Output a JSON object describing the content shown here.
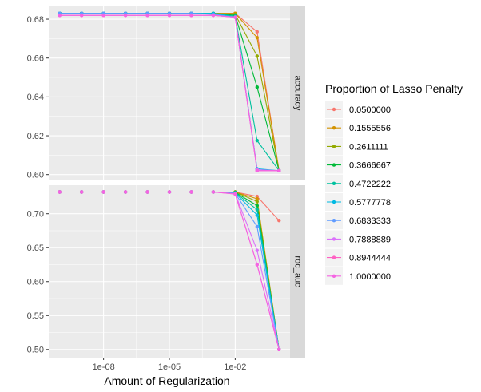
{
  "chart_data": {
    "type": "line",
    "xlabel": "Amount of Regularization",
    "x_scale": "log10",
    "x_ticks": [
      {
        "value": 1e-08,
        "label": "1e-08"
      },
      {
        "value": 1e-05,
        "label": "1e-05"
      },
      {
        "value": 0.01,
        "label": "1e-02"
      }
    ],
    "x": [
      1e-10,
      1e-09,
      1e-08,
      1e-07,
      1e-06,
      1e-05,
      0.0001,
      0.001,
      0.01,
      0.1,
      1
    ],
    "legend": {
      "title": "Proportion of Lasso Penalty",
      "position": "right"
    },
    "grid": true,
    "series_styles": [
      {
        "name": "0.0500000",
        "color": "#F8766D"
      },
      {
        "name": "0.1555556",
        "color": "#D39200"
      },
      {
        "name": "0.2611111",
        "color": "#93AA00"
      },
      {
        "name": "0.3666667",
        "color": "#00BA38"
      },
      {
        "name": "0.4722222",
        "color": "#00C19F"
      },
      {
        "name": "0.5777778",
        "color": "#00B9E3"
      },
      {
        "name": "0.6833333",
        "color": "#619CFF"
      },
      {
        "name": "0.7888889",
        "color": "#DB72FB"
      },
      {
        "name": "0.8944444",
        "color": "#FF61C3"
      },
      {
        "name": "1.0000000",
        "color": "#F564E3"
      }
    ],
    "panels": [
      {
        "strip_label": "accuracy",
        "ylim": [
          0.597,
          0.687
        ],
        "y_ticks": [
          {
            "value": 0.6,
            "label": "0.60"
          },
          {
            "value": 0.62,
            "label": "0.62"
          },
          {
            "value": 0.64,
            "label": "0.64"
          },
          {
            "value": 0.66,
            "label": "0.66"
          },
          {
            "value": 0.68,
            "label": "0.68"
          }
        ],
        "series": [
          {
            "name": "0.0500000",
            "values": [
              0.683,
              0.683,
              0.683,
              0.683,
              0.683,
              0.683,
              0.683,
              0.683,
              0.683,
              0.6735,
              0.602
            ]
          },
          {
            "name": "0.1555556",
            "values": [
              0.683,
              0.683,
              0.683,
              0.683,
              0.683,
              0.683,
              0.683,
              0.683,
              0.683,
              0.6705,
              0.602
            ]
          },
          {
            "name": "0.2611111",
            "values": [
              0.683,
              0.683,
              0.683,
              0.683,
              0.683,
              0.683,
              0.683,
              0.683,
              0.6825,
              0.661,
              0.602
            ]
          },
          {
            "name": "0.3666667",
            "values": [
              0.683,
              0.683,
              0.683,
              0.683,
              0.683,
              0.683,
              0.683,
              0.683,
              0.682,
              0.645,
              0.602
            ]
          },
          {
            "name": "0.4722222",
            "values": [
              0.683,
              0.683,
              0.683,
              0.683,
              0.683,
              0.683,
              0.683,
              0.683,
              0.6815,
              0.6175,
              0.602
            ]
          },
          {
            "name": "0.5777778",
            "values": [
              0.683,
              0.683,
              0.683,
              0.683,
              0.683,
              0.683,
              0.683,
              0.683,
              0.681,
              0.603,
              0.602
            ]
          },
          {
            "name": "0.6833333",
            "values": [
              0.683,
              0.683,
              0.683,
              0.683,
              0.683,
              0.683,
              0.683,
              0.6825,
              0.681,
              0.6025,
              0.602
            ]
          },
          {
            "name": "0.7888889",
            "values": [
              0.682,
              0.682,
              0.682,
              0.682,
              0.682,
              0.682,
              0.682,
              0.682,
              0.681,
              0.6025,
              0.602
            ]
          },
          {
            "name": "0.8944444",
            "values": [
              0.682,
              0.682,
              0.682,
              0.682,
              0.682,
              0.682,
              0.682,
              0.682,
              0.681,
              0.602,
              0.602
            ]
          },
          {
            "name": "1.0000000",
            "values": [
              0.682,
              0.682,
              0.682,
              0.682,
              0.682,
              0.682,
              0.682,
              0.682,
              0.681,
              0.602,
              0.602
            ]
          }
        ]
      },
      {
        "strip_label": "roc_auc",
        "ylim": [
          0.488,
          0.742
        ],
        "y_ticks": [
          {
            "value": 0.5,
            "label": "0.50"
          },
          {
            "value": 0.55,
            "label": "0.55"
          },
          {
            "value": 0.6,
            "label": "0.60"
          },
          {
            "value": 0.65,
            "label": "0.65"
          },
          {
            "value": 0.7,
            "label": "0.70"
          }
        ],
        "series": [
          {
            "name": "0.0500000",
            "values": [
              0.732,
              0.732,
              0.732,
              0.732,
              0.732,
              0.732,
              0.732,
              0.732,
              0.732,
              0.7255,
              0.69
            ]
          },
          {
            "name": "0.1555556",
            "values": [
              0.732,
              0.732,
              0.732,
              0.732,
              0.732,
              0.732,
              0.732,
              0.732,
              0.732,
              0.722,
              0.5
            ]
          },
          {
            "name": "0.2611111",
            "values": [
              0.732,
              0.732,
              0.732,
              0.732,
              0.732,
              0.732,
              0.732,
              0.732,
              0.732,
              0.718,
              0.5
            ]
          },
          {
            "name": "0.3666667",
            "values": [
              0.732,
              0.732,
              0.732,
              0.732,
              0.732,
              0.732,
              0.732,
              0.732,
              0.7315,
              0.712,
              0.5
            ]
          },
          {
            "name": "0.4722222",
            "values": [
              0.732,
              0.732,
              0.732,
              0.732,
              0.732,
              0.732,
              0.732,
              0.732,
              0.731,
              0.706,
              0.5
            ]
          },
          {
            "name": "0.5777778",
            "values": [
              0.732,
              0.732,
              0.732,
              0.732,
              0.732,
              0.732,
              0.732,
              0.732,
              0.7305,
              0.698,
              0.5
            ]
          },
          {
            "name": "0.6833333",
            "values": [
              0.732,
              0.732,
              0.732,
              0.732,
              0.732,
              0.732,
              0.732,
              0.732,
              0.73,
              0.681,
              0.5
            ]
          },
          {
            "name": "0.7888889",
            "values": [
              0.732,
              0.732,
              0.732,
              0.732,
              0.732,
              0.732,
              0.732,
              0.732,
              0.7295,
              0.646,
              0.5
            ]
          },
          {
            "name": "0.8944444",
            "values": [
              0.732,
              0.732,
              0.732,
              0.732,
              0.732,
              0.732,
              0.732,
              0.732,
              0.729,
              0.625,
              0.5
            ]
          },
          {
            "name": "1.0000000",
            "values": [
              0.732,
              0.732,
              0.732,
              0.732,
              0.732,
              0.732,
              0.732,
              0.732,
              0.729,
              0.625,
              0.5
            ]
          }
        ]
      }
    ]
  }
}
